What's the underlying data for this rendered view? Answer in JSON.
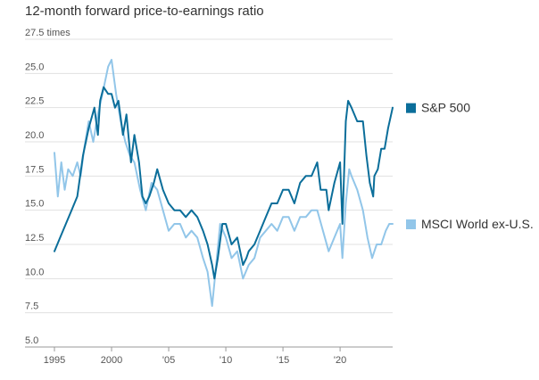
{
  "chart_data": {
    "type": "line",
    "title": "12-month forward price-to-earnings ratio",
    "y_unit": "times",
    "ylim": [
      5.0,
      27.5
    ],
    "y_ticks": [
      "27.5 times",
      "25.0",
      "22.5",
      "20.0",
      "17.5",
      "15.0",
      "12.5",
      "10.0",
      "7.5",
      "5.0"
    ],
    "xlim": [
      1995.0,
      2024.6
    ],
    "x_ticks": [
      {
        "year": 1995,
        "label": "1995"
      },
      {
        "year": 2000,
        "label": "2000"
      },
      {
        "year": 2005,
        "label": "'05"
      },
      {
        "year": 2010,
        "label": "'10"
      },
      {
        "year": 2015,
        "label": "'15"
      },
      {
        "year": 2020,
        "label": "'20"
      }
    ],
    "grid": "horizontal",
    "legend": "right",
    "series": [
      {
        "name": "S&P 500",
        "color": "#0b6e9a",
        "points": [
          [
            1995.0,
            12.0
          ],
          [
            1995.5,
            13.0
          ],
          [
            1996.0,
            14.0
          ],
          [
            1996.5,
            15.0
          ],
          [
            1997.0,
            16.0
          ],
          [
            1997.5,
            19.0
          ],
          [
            1998.0,
            21.0
          ],
          [
            1998.5,
            22.5
          ],
          [
            1998.8,
            20.5
          ],
          [
            1999.0,
            23.0
          ],
          [
            1999.3,
            24.0
          ],
          [
            1999.7,
            23.5
          ],
          [
            2000.0,
            23.5
          ],
          [
            2000.3,
            22.5
          ],
          [
            2000.6,
            23.0
          ],
          [
            2001.0,
            20.5
          ],
          [
            2001.3,
            22.0
          ],
          [
            2001.7,
            18.5
          ],
          [
            2002.0,
            20.5
          ],
          [
            2002.4,
            18.5
          ],
          [
            2002.7,
            16.0
          ],
          [
            2003.0,
            15.5
          ],
          [
            2003.3,
            16.0
          ],
          [
            2003.7,
            17.0
          ],
          [
            2004.0,
            18.0
          ],
          [
            2004.5,
            16.5
          ],
          [
            2005.0,
            15.5
          ],
          [
            2005.5,
            15.0
          ],
          [
            2006.0,
            15.0
          ],
          [
            2006.5,
            14.5
          ],
          [
            2007.0,
            15.0
          ],
          [
            2007.5,
            14.5
          ],
          [
            2008.0,
            13.5
          ],
          [
            2008.4,
            12.5
          ],
          [
            2008.8,
            11.0
          ],
          [
            2009.0,
            10.0
          ],
          [
            2009.3,
            11.5
          ],
          [
            2009.7,
            14.0
          ],
          [
            2010.0,
            14.0
          ],
          [
            2010.5,
            12.5
          ],
          [
            2011.0,
            13.0
          ],
          [
            2011.5,
            11.0
          ],
          [
            2011.8,
            11.5
          ],
          [
            2012.0,
            12.0
          ],
          [
            2012.5,
            12.5
          ],
          [
            2013.0,
            13.5
          ],
          [
            2013.5,
            14.5
          ],
          [
            2014.0,
            15.5
          ],
          [
            2014.5,
            15.5
          ],
          [
            2015.0,
            16.5
          ],
          [
            2015.5,
            16.5
          ],
          [
            2016.0,
            15.5
          ],
          [
            2016.5,
            17.0
          ],
          [
            2017.0,
            17.5
          ],
          [
            2017.5,
            17.5
          ],
          [
            2018.0,
            18.5
          ],
          [
            2018.3,
            16.5
          ],
          [
            2018.8,
            16.5
          ],
          [
            2019.0,
            15.0
          ],
          [
            2019.5,
            17.0
          ],
          [
            2020.0,
            18.5
          ],
          [
            2020.2,
            14.0
          ],
          [
            2020.5,
            21.5
          ],
          [
            2020.7,
            23.0
          ],
          [
            2021.0,
            22.5
          ],
          [
            2021.5,
            21.5
          ],
          [
            2022.0,
            21.5
          ],
          [
            2022.3,
            19.0
          ],
          [
            2022.6,
            17.0
          ],
          [
            2022.9,
            16.0
          ],
          [
            2023.0,
            17.5
          ],
          [
            2023.3,
            18.0
          ],
          [
            2023.6,
            19.5
          ],
          [
            2023.9,
            19.5
          ],
          [
            2024.2,
            21.0
          ],
          [
            2024.6,
            22.5
          ]
        ]
      },
      {
        "name": "MSCI World ex-U.S.",
        "color": "#92c6e9",
        "points": [
          [
            1995.0,
            19.2
          ],
          [
            1995.3,
            16.0
          ],
          [
            1995.6,
            18.5
          ],
          [
            1995.9,
            16.5
          ],
          [
            1996.2,
            18.0
          ],
          [
            1996.6,
            17.5
          ],
          [
            1997.0,
            18.5
          ],
          [
            1997.3,
            17.5
          ],
          [
            1997.6,
            19.5
          ],
          [
            1998.0,
            21.5
          ],
          [
            1998.4,
            20.0
          ],
          [
            1998.8,
            22.0
          ],
          [
            1999.2,
            23.5
          ],
          [
            1999.7,
            25.5
          ],
          [
            2000.0,
            26.0
          ],
          [
            2000.4,
            23.5
          ],
          [
            2000.8,
            21.5
          ],
          [
            2001.2,
            20.0
          ],
          [
            2001.6,
            19.0
          ],
          [
            2002.0,
            18.5
          ],
          [
            2002.5,
            16.5
          ],
          [
            2003.0,
            15.0
          ],
          [
            2003.5,
            17.0
          ],
          [
            2004.0,
            16.5
          ],
          [
            2004.5,
            15.0
          ],
          [
            2005.0,
            13.5
          ],
          [
            2005.5,
            14.0
          ],
          [
            2006.0,
            14.0
          ],
          [
            2006.5,
            13.0
          ],
          [
            2007.0,
            13.5
          ],
          [
            2007.5,
            13.0
          ],
          [
            2008.0,
            11.5
          ],
          [
            2008.4,
            10.5
          ],
          [
            2008.8,
            8.0
          ],
          [
            2009.1,
            10.5
          ],
          [
            2009.5,
            14.0
          ],
          [
            2010.0,
            13.0
          ],
          [
            2010.5,
            11.5
          ],
          [
            2011.0,
            12.0
          ],
          [
            2011.5,
            10.0
          ],
          [
            2012.0,
            11.0
          ],
          [
            2012.5,
            11.5
          ],
          [
            2013.0,
            13.0
          ],
          [
            2013.5,
            13.5
          ],
          [
            2014.0,
            14.0
          ],
          [
            2014.5,
            13.5
          ],
          [
            2015.0,
            14.5
          ],
          [
            2015.5,
            14.5
          ],
          [
            2016.0,
            13.5
          ],
          [
            2016.5,
            14.5
          ],
          [
            2017.0,
            14.5
          ],
          [
            2017.5,
            15.0
          ],
          [
            2018.0,
            15.0
          ],
          [
            2018.5,
            13.5
          ],
          [
            2019.0,
            12.0
          ],
          [
            2019.5,
            13.0
          ],
          [
            2020.0,
            14.0
          ],
          [
            2020.2,
            11.5
          ],
          [
            2020.5,
            15.5
          ],
          [
            2020.8,
            18.0
          ],
          [
            2021.0,
            17.5
          ],
          [
            2021.5,
            16.5
          ],
          [
            2022.0,
            15.0
          ],
          [
            2022.4,
            13.0
          ],
          [
            2022.8,
            11.5
          ],
          [
            2023.2,
            12.5
          ],
          [
            2023.6,
            12.5
          ],
          [
            2024.0,
            13.5
          ],
          [
            2024.3,
            14.0
          ],
          [
            2024.6,
            14.0
          ]
        ]
      }
    ]
  }
}
